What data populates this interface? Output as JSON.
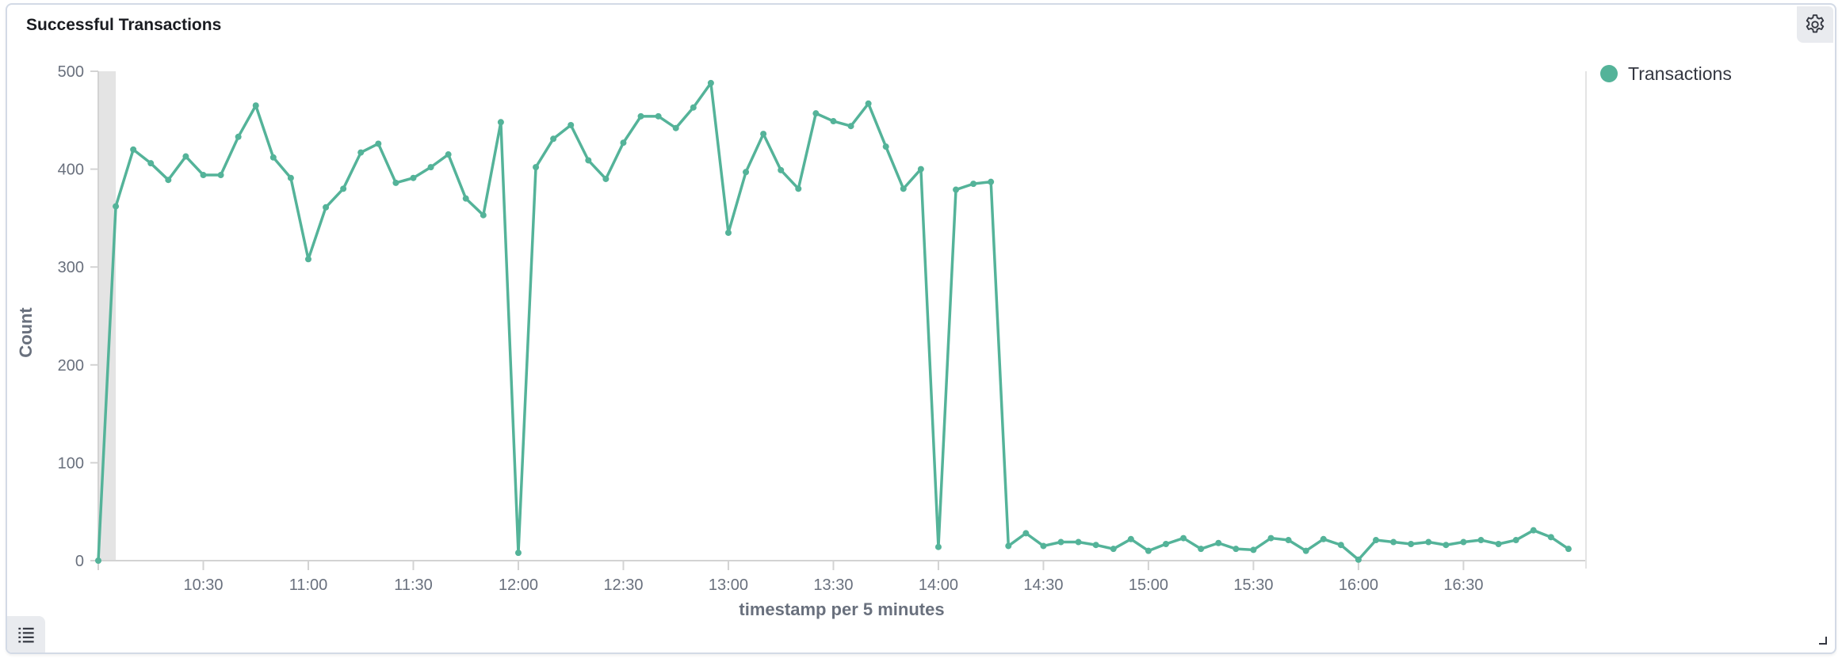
{
  "panel": {
    "title": "Successful Transactions",
    "settings_icon": "gear-icon",
    "legend_toggle_icon": "list-icon",
    "resize_icon": "resize-corner-icon"
  },
  "chart_data": {
    "type": "line",
    "title": "Successful Transactions",
    "xlabel": "timestamp per 5 minutes",
    "ylabel": "Count",
    "ylim": [
      0,
      500
    ],
    "yticks": [
      "0",
      "100",
      "200",
      "300",
      "400",
      "500"
    ],
    "xlim": [
      "10:00",
      "17:05"
    ],
    "xticks": [
      "10:30",
      "11:00",
      "11:30",
      "12:00",
      "12:30",
      "13:00",
      "13:30",
      "14:00",
      "14:30",
      "15:00",
      "15:30",
      "16:00",
      "16:30"
    ],
    "partial_bucket": [
      "10:00",
      "10:05"
    ],
    "grid": false,
    "legend_position": "right",
    "color": "#54b399",
    "series": [
      {
        "name": "Transactions",
        "x": [
          "10:00",
          "10:05",
          "10:10",
          "10:15",
          "10:20",
          "10:25",
          "10:30",
          "10:35",
          "10:40",
          "10:45",
          "10:50",
          "10:55",
          "11:00",
          "11:05",
          "11:10",
          "11:15",
          "11:20",
          "11:25",
          "11:30",
          "11:35",
          "11:40",
          "11:45",
          "11:50",
          "11:55",
          "12:00",
          "12:05",
          "12:10",
          "12:15",
          "12:20",
          "12:25",
          "12:30",
          "12:35",
          "12:40",
          "12:45",
          "12:50",
          "12:55",
          "13:00",
          "13:05",
          "13:10",
          "13:15",
          "13:20",
          "13:25",
          "13:30",
          "13:35",
          "13:40",
          "13:45",
          "13:50",
          "13:55",
          "14:00",
          "14:05",
          "14:10",
          "14:15",
          "14:20",
          "14:25",
          "14:30",
          "14:35",
          "14:40",
          "14:45",
          "14:50",
          "14:55",
          "15:00",
          "15:05",
          "15:10",
          "15:15",
          "15:20",
          "15:25",
          "15:30",
          "15:35",
          "15:40",
          "15:45",
          "15:50",
          "15:55",
          "16:00",
          "16:05",
          "16:10",
          "16:15",
          "16:20",
          "16:25",
          "16:30",
          "16:35",
          "16:40",
          "16:45",
          "16:50",
          "16:55",
          "17:00"
        ],
        "values": [
          0,
          362,
          420,
          406,
          389,
          413,
          394,
          394,
          433,
          465,
          412,
          391,
          308,
          361,
          380,
          417,
          426,
          386,
          391,
          402,
          415,
          370,
          353,
          448,
          8,
          402,
          431,
          445,
          409,
          390,
          427,
          454,
          454,
          442,
          463,
          488,
          335,
          397,
          436,
          399,
          380,
          457,
          449,
          444,
          467,
          423,
          380,
          400,
          14,
          379,
          385,
          387,
          15,
          28,
          15,
          19,
          19,
          16,
          12,
          22,
          10,
          17,
          23,
          12,
          18,
          12,
          11,
          23,
          21,
          10,
          22,
          16,
          1,
          21,
          19,
          17,
          19,
          16,
          19,
          21,
          17,
          21,
          31,
          24,
          12
        ]
      }
    ]
  }
}
